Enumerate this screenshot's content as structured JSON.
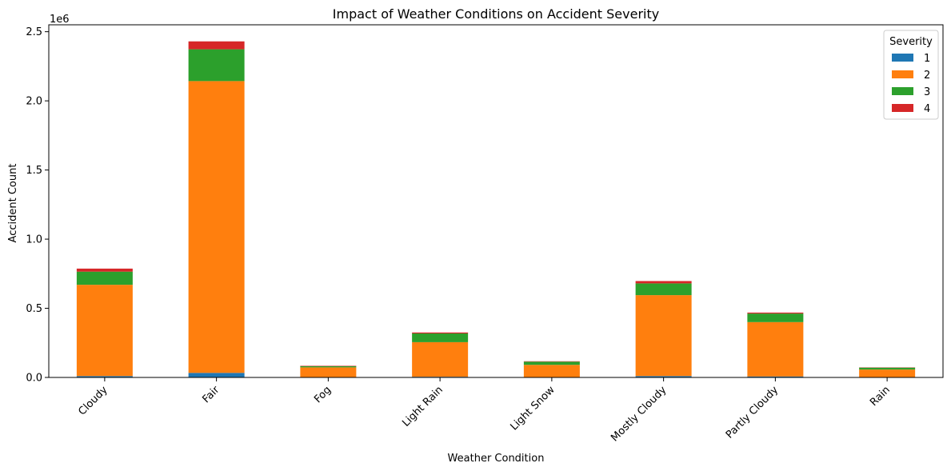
{
  "chart_data": {
    "type": "bar",
    "stacked": true,
    "title": "Impact of Weather Conditions on Accident Severity",
    "xlabel": "Weather Condition",
    "ylabel": "Accident Count",
    "y_multiplier_label": "1e6",
    "ylim": [
      0,
      2550000
    ],
    "yticks": [
      0,
      500000,
      1000000,
      1500000,
      2000000,
      2500000
    ],
    "ytick_labels": [
      "0.0",
      "0.5",
      "1.0",
      "1.5",
      "2.0",
      "2.5"
    ],
    "grid": false,
    "legend": {
      "title": "Severity",
      "position": "top-right"
    },
    "categories": [
      "Cloudy",
      "Fair",
      "Fog",
      "Light Rain",
      "Light Snow",
      "Mostly Cloudy",
      "Partly Cloudy",
      "Rain"
    ],
    "series": [
      {
        "name": "1",
        "color": "#1f77b4",
        "values": [
          10000,
          33000,
          1000,
          5000,
          1000,
          10000,
          7000,
          1000
        ]
      },
      {
        "name": "2",
        "color": "#ff7f0e",
        "values": [
          660000,
          2110000,
          72000,
          250000,
          90000,
          585000,
          393000,
          56000
        ]
      },
      {
        "name": "3",
        "color": "#2ca02c",
        "values": [
          95000,
          230000,
          8000,
          63000,
          23000,
          85000,
          62000,
          14000
        ]
      },
      {
        "name": "4",
        "color": "#d62728",
        "values": [
          22000,
          57000,
          3000,
          7000,
          3000,
          17000,
          7000,
          2000
        ]
      }
    ]
  }
}
